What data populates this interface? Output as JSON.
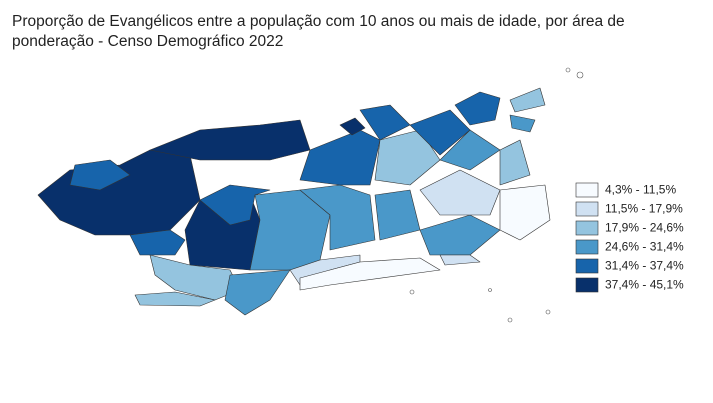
{
  "title": "Proporção de Evangélicos entre a população com 10 anos ou mais de idade, por área de ponderação - Censo Demográfico 2022",
  "legend": {
    "items": [
      {
        "label": "4,3% - 11,5%",
        "color": "#f7fbff"
      },
      {
        "label": "11,5% - 17,9%",
        "color": "#d0e1f2"
      },
      {
        "label": "17,9% - 24,6%",
        "color": "#94c4df"
      },
      {
        "label": "24,6% - 31,4%",
        "color": "#4a98c9"
      },
      {
        "label": "31,4% - 37,4%",
        "color": "#1764ab"
      },
      {
        "label": "37,4% - 45,1%",
        "color": "#08306b"
      }
    ]
  }
}
